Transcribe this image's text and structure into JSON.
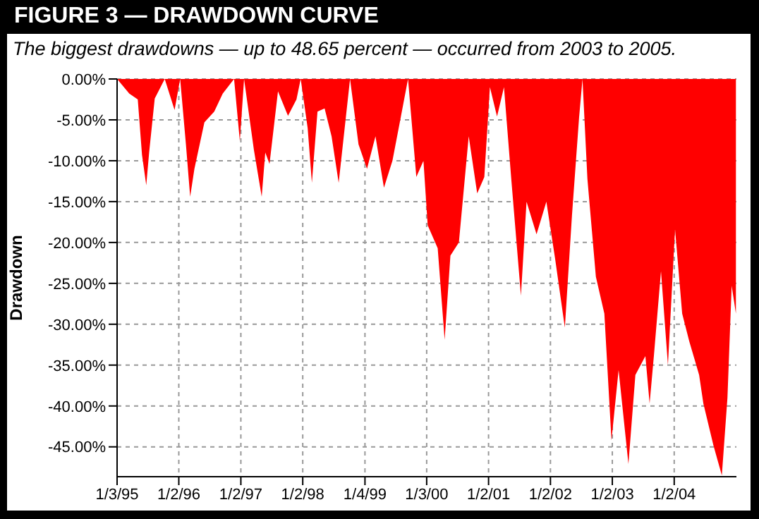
{
  "chart_data": {
    "type": "area",
    "title": "FIGURE 3 — DRAWDOWN CURVE",
    "subtitle": "The biggest drawdowns — up to 48.65 percent — occurred from 2003 to 2005.",
    "ylabel": "Drawdown",
    "x": [
      "1995-01-03",
      "1995-03-16",
      "1995-05-05",
      "1995-05-30",
      "1995-06-24",
      "1995-07-11",
      "1995-08-13",
      "1995-10-11",
      "1995-12-08",
      "1996-01-10",
      "1996-02-13",
      "1996-03-09",
      "1996-04-03",
      "1996-06-01",
      "1996-07-29",
      "1996-09-17",
      "1996-11-23",
      "1996-12-27",
      "1997-01-21",
      "1997-03-20",
      "1997-05-05",
      "1997-05-26",
      "1997-06-20",
      "1997-08-09",
      "1997-10-07",
      "1997-11-26",
      "1997-12-21",
      "1998-01-31",
      "1998-02-25",
      "1998-03-30",
      "1998-05-11",
      "1998-06-21",
      "1998-08-02",
      "1998-10-08",
      "1998-11-27",
      "1999-01-16",
      "1999-03-07",
      "1999-04-26",
      "1999-06-15",
      "1999-08-04",
      "1999-09-15",
      "1999-11-03",
      "1999-12-15",
      "2000-01-09",
      "2000-03-08",
      "2000-04-18",
      "2000-05-22",
      "2000-07-11",
      "2000-09-07",
      "2000-10-27",
      "2000-12-08",
      "2001-01-10",
      "2001-02-21",
      "2001-04-03",
      "2001-05-15",
      "2001-07-12",
      "2001-08-14",
      "2001-10-12",
      "2001-12-09",
      "2002-01-29",
      "2002-03-28",
      "2002-05-09",
      "2002-06-20",
      "2002-07-10",
      "2002-08-08",
      "2002-09-27",
      "2002-11-16",
      "2002-12-28",
      "2003-02-08",
      "2003-04-07",
      "2003-05-18",
      "2003-07-16",
      "2003-08-10",
      "2003-09-04",
      "2003-10-16",
      "2003-11-26",
      "2004-01-07",
      "2004-02-18",
      "2004-03-31",
      "2004-05-28",
      "2004-06-22",
      "2004-08-20",
      "2004-10-09",
      "2004-11-11",
      "2004-12-06",
      "2004-12-31"
    ],
    "series": [
      {
        "color": "#ff0000",
        "values": [
          0,
          -1.8,
          -2.5,
          -9.3,
          -13,
          -9,
          -2.4,
          0,
          -3.8,
          0,
          -8,
          -14.4,
          -11,
          -5.3,
          -4,
          -1.8,
          0,
          -7.6,
          0,
          -8.7,
          -14.4,
          -9,
          -10.4,
          -1.5,
          -4.5,
          -2.5,
          0,
          -6,
          -12.7,
          -4,
          -3.6,
          -7,
          -12.7,
          0,
          -8,
          -11,
          -7,
          -13.3,
          -10,
          -4.6,
          0,
          -12,
          -10,
          -17.9,
          -20.7,
          -31.9,
          -21.6,
          -20,
          -7,
          -14,
          -12,
          -1,
          -4.6,
          -1,
          -12,
          -26.5,
          -15,
          -19,
          -15,
          -21.9,
          -30.4,
          -16.7,
          -4.7,
          0,
          -12.2,
          -24.2,
          -28.7,
          -44.2,
          -35.6,
          -47.1,
          -36.2,
          -33.9,
          -39.7,
          -33.9,
          -23.5,
          -35,
          -18.4,
          -28.7,
          -32.1,
          -36.2,
          -39.7,
          -44.8,
          -48.5,
          -39,
          -25.3,
          -28.7
        ]
      }
    ],
    "xlim": [
      "1995-01-03",
      "2005-01-03"
    ],
    "xticks": [
      {
        "value": "1995-01-03",
        "label": "1/3/95"
      },
      {
        "value": "1996-01-02",
        "label": "1/2/96"
      },
      {
        "value": "1997-01-02",
        "label": "1/2/97"
      },
      {
        "value": "1998-01-02",
        "label": "1/2/98"
      },
      {
        "value": "1999-01-04",
        "label": "1/4/99"
      },
      {
        "value": "2000-01-03",
        "label": "1/3/00"
      },
      {
        "value": "2001-01-02",
        "label": "1/2/01"
      },
      {
        "value": "2002-01-02",
        "label": "1/2/02"
      },
      {
        "value": "2003-01-02",
        "label": "1/2/03"
      },
      {
        "value": "2004-01-02",
        "label": "1/2/04"
      }
    ],
    "ylim": [
      -48.65,
      0
    ],
    "yticks": [
      {
        "value": 0,
        "label": "0.00%"
      },
      {
        "value": -5,
        "label": "-5.00%"
      },
      {
        "value": -10,
        "label": "-10.00%"
      },
      {
        "value": -15,
        "label": "-15.00%"
      },
      {
        "value": -20,
        "label": "-20.00%"
      },
      {
        "value": -25,
        "label": "-25.00%"
      },
      {
        "value": -30,
        "label": "-30.00%"
      },
      {
        "value": -35,
        "label": "-35.00%"
      },
      {
        "value": -40,
        "label": "-40.00%"
      },
      {
        "value": -45,
        "label": "-45.00%"
      }
    ],
    "grid": true
  }
}
